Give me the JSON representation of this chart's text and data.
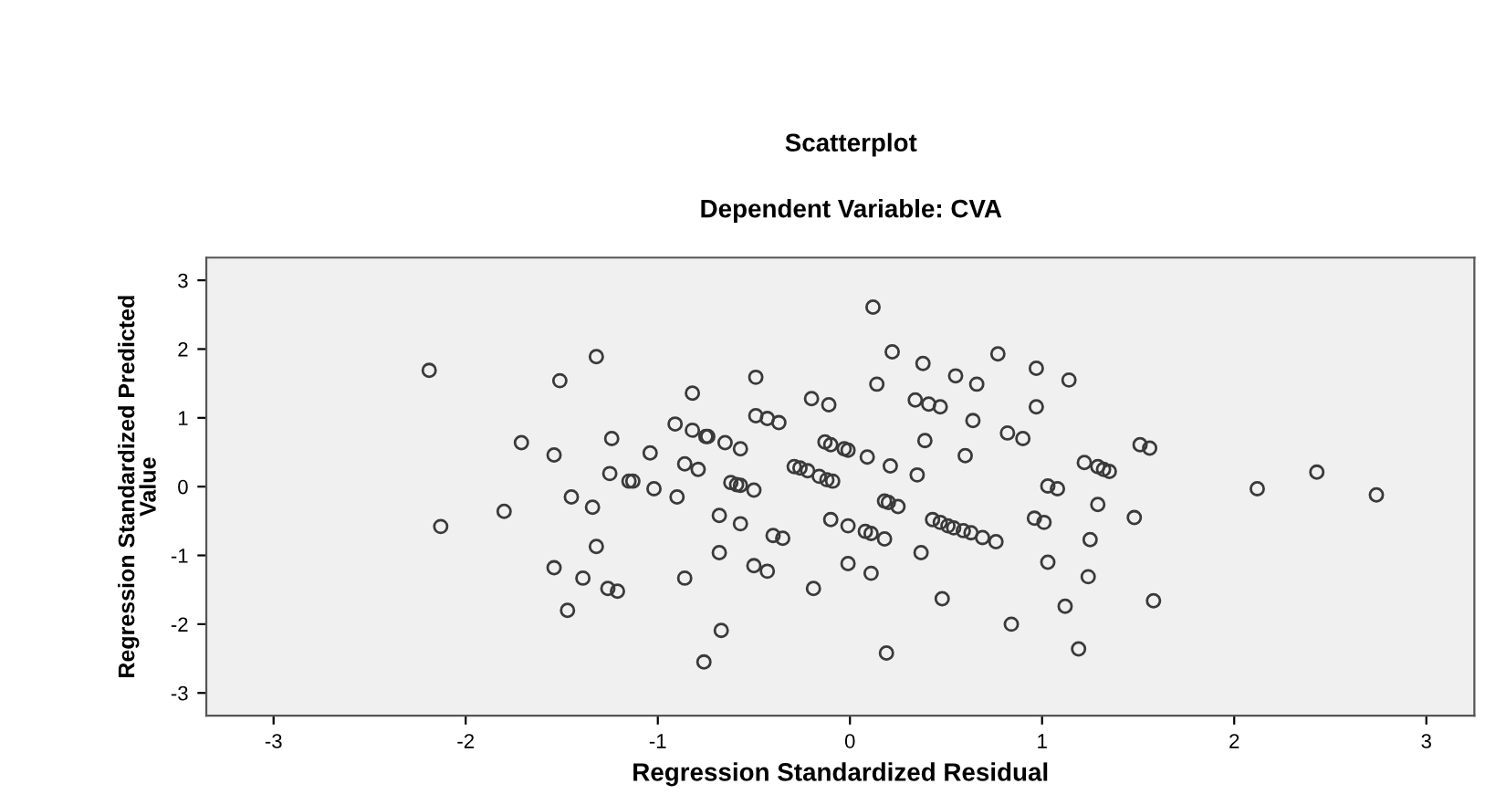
{
  "chart_data": {
    "type": "scatter",
    "title": "Scatterplot",
    "subtitle": "Dependent Variable: CVA",
    "xlabel": "Regression Standardized Residual",
    "ylabel": "Regression Standardized Predicted\nValue",
    "marker": "circle",
    "grid": false,
    "xlim": [
      -3.35,
      3.25
    ],
    "ylim": [
      -3.33,
      3.33
    ],
    "xticks": [
      -3,
      -2,
      -1,
      0,
      1,
      2,
      3
    ],
    "yticks": [
      -3,
      -2,
      -1,
      0,
      1,
      2,
      3
    ],
    "series": [
      {
        "color": "#3a3a3a",
        "x": [
          -2.19,
          -1.51,
          -1.32,
          -0.82,
          -0.49,
          -0.2,
          -0.11,
          -1.71,
          -1.54,
          -1.24,
          -1.04,
          -0.91,
          -0.82,
          -0.75,
          -0.74,
          -0.65,
          -0.57,
          -0.49,
          -0.43,
          -0.37,
          -0.29,
          -0.26,
          -0.22,
          -0.16,
          -0.12,
          -0.09,
          -0.13,
          -0.1,
          -0.03,
          -0.01,
          -1.25,
          -1.15,
          -1.13,
          -1.02,
          -0.9,
          -0.86,
          -0.79,
          -0.62,
          -0.59,
          -0.57,
          -0.5,
          -1.45,
          -2.13,
          -1.8,
          -1.34,
          -1.32,
          -1.54,
          -1.39,
          -1.26,
          -1.21,
          -1.47,
          -0.86,
          -0.68,
          -0.57,
          -0.68,
          -0.5,
          -0.43,
          -0.4,
          -0.35,
          -0.67,
          -0.76,
          -0.19,
          -0.1,
          -0.01,
          -0.01,
          0.12,
          0.22,
          0.38,
          0.77,
          0.55,
          0.66,
          0.97,
          1.14,
          0.14,
          0.34,
          0.41,
          0.47,
          0.97,
          0.64,
          0.82,
          0.9,
          0.39,
          0.6,
          1.51,
          1.56,
          0.09,
          0.21,
          0.35,
          1.22,
          1.29,
          1.32,
          1.35,
          2.43,
          2.12,
          2.74,
          1.03,
          1.08,
          0.18,
          0.2,
          0.25,
          0.08,
          0.11,
          0.18,
          0.11,
          0.43,
          0.47,
          0.51,
          0.54,
          0.59,
          0.63,
          0.69,
          0.76,
          0.37,
          0.48,
          0.19,
          0.84,
          0.96,
          1.01,
          1.03,
          1.12,
          1.19,
          1.25,
          1.24,
          1.29,
          1.48,
          1.58
        ],
        "values": [
          1.69,
          1.54,
          1.89,
          1.36,
          1.59,
          1.28,
          1.19,
          0.64,
          0.46,
          0.7,
          0.49,
          0.91,
          0.82,
          0.73,
          0.73,
          0.64,
          0.55,
          1.03,
          0.99,
          0.93,
          0.29,
          0.27,
          0.23,
          0.15,
          0.1,
          0.08,
          0.65,
          0.61,
          0.55,
          0.53,
          0.19,
          0.08,
          0.08,
          -0.03,
          -0.15,
          0.33,
          0.25,
          0.06,
          0.03,
          0.02,
          -0.05,
          -0.15,
          -0.58,
          -0.36,
          -0.3,
          -0.87,
          -1.18,
          -1.33,
          -1.48,
          -1.52,
          -1.8,
          -1.33,
          -0.42,
          -0.54,
          -0.96,
          -1.15,
          -1.23,
          -0.71,
          -0.75,
          -2.09,
          -2.55,
          -1.48,
          -0.48,
          -0.57,
          -1.12,
          2.61,
          1.96,
          1.79,
          1.93,
          1.61,
          1.49,
          1.72,
          1.55,
          1.49,
          1.26,
          1.2,
          1.16,
          1.16,
          0.96,
          0.78,
          0.7,
          0.67,
          0.45,
          0.61,
          0.56,
          0.43,
          0.3,
          0.17,
          0.35,
          0.29,
          0.25,
          0.22,
          0.21,
          -0.03,
          -0.12,
          0.01,
          -0.03,
          -0.21,
          -0.23,
          -0.29,
          -0.65,
          -0.68,
          -0.76,
          -1.26,
          -0.48,
          -0.52,
          -0.57,
          -0.6,
          -0.64,
          -0.67,
          -0.74,
          -0.8,
          -0.96,
          -1.63,
          -2.42,
          -2.0,
          -0.46,
          -0.52,
          -1.1,
          -1.74,
          -2.36,
          -0.77,
          -1.31,
          -0.26,
          -0.45,
          -1.66
        ]
      }
    ]
  }
}
